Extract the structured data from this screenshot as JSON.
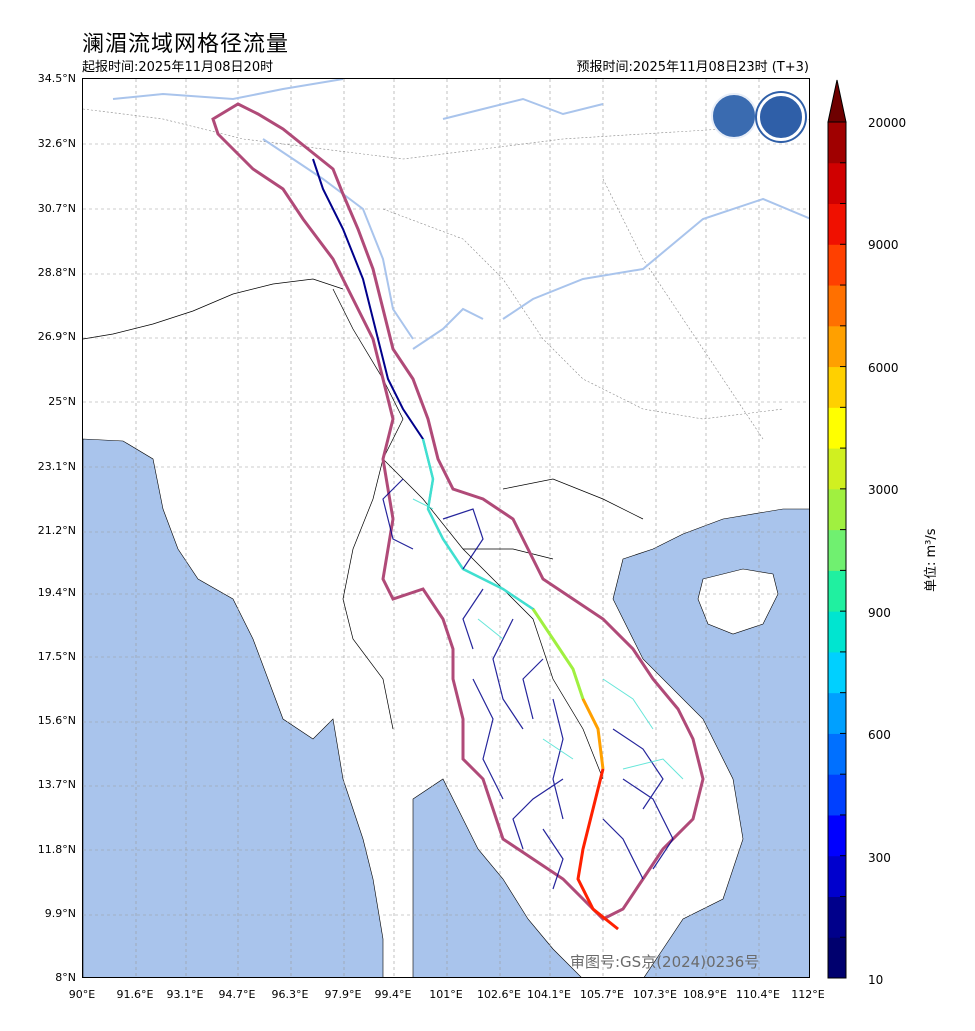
{
  "header": {
    "title": "澜湄流域网格径流量",
    "issue_time": "起报时间:2025年11月08日20时",
    "forecast_time": "预报时间:2025年11月08日23时 (T+3)"
  },
  "axes": {
    "lat_ticks": [
      "34.5°N",
      "32.6°N",
      "30.7°N",
      "28.8°N",
      "26.9°N",
      "25°N",
      "23.1°N",
      "21.2°N",
      "19.4°N",
      "17.5°N",
      "15.6°N",
      "13.7°N",
      "11.8°N",
      "9.9°N",
      "8°N"
    ],
    "lon_ticks": [
      "90°E",
      "91.6°E",
      "93.1°E",
      "94.7°E",
      "96.3°E",
      "97.9°E",
      "99.4°E",
      "101°E",
      "102.6°E",
      "104.1°E",
      "105.7°E",
      "107.3°E",
      "108.9°E",
      "110.4°E",
      "112°E"
    ]
  },
  "colorbar": {
    "labels": [
      "20000",
      "9000",
      "6000",
      "3000",
      "900",
      "600",
      "300",
      "10"
    ],
    "colors": [
      "#00006e",
      "#00008b",
      "#0000cd",
      "#0000ff",
      "#0040ff",
      "#0070ff",
      "#00a0ff",
      "#00d0ff",
      "#00e5d0",
      "#20f0a0",
      "#70f070",
      "#a0f040",
      "#d0f020",
      "#ffff00",
      "#ffd000",
      "#ffa000",
      "#ff7000",
      "#ff4000",
      "#f01000",
      "#d00000",
      "#a00000"
    ],
    "unit": "单位: m³/s"
  },
  "approval": "审图号:GS京(2024)0236号",
  "colors": {
    "sea": "#a9c4ec",
    "basin_border": "#b04a78",
    "river_low": "#00008b",
    "river_mid": "#40e0d0",
    "river_high": "#ff2000"
  },
  "logos": [
    "wmo-logo-icon",
    "cma-logo-icon"
  ]
}
